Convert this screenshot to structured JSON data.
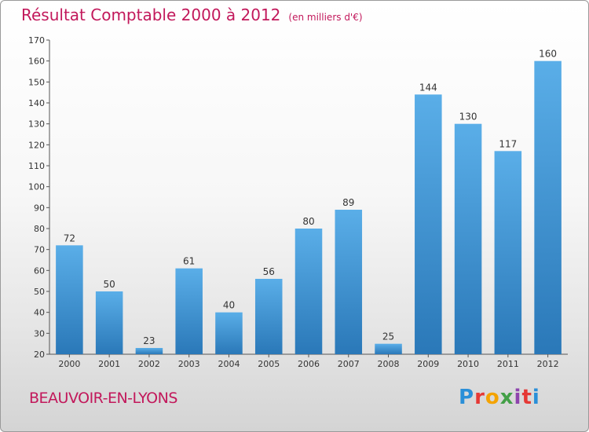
{
  "page": {
    "title": "Résultat Comptable 2000 à 2012",
    "unit": "(en milliers d'€)",
    "commune": "BEAUVOIR-EN-LYONS",
    "logo": [
      "P",
      "r",
      "o",
      "x",
      "i",
      "t",
      "i"
    ],
    "logo_colors": [
      "#2a8fd8",
      "#e53935",
      "#f4a300",
      "#43a047",
      "#8e44ad",
      "#e53935",
      "#2a8fd8"
    ]
  },
  "chart_data": {
    "type": "bar",
    "title": "Résultat Comptable 2000 à 2012",
    "ylabel": "en milliers d'€",
    "categories": [
      "2000",
      "2001",
      "2002",
      "2003",
      "2004",
      "2005",
      "2006",
      "2007",
      "2008",
      "2009",
      "2010",
      "2011",
      "2012"
    ],
    "values": [
      72,
      50,
      23,
      61,
      40,
      56,
      80,
      89,
      25,
      144,
      130,
      117,
      160
    ],
    "ylim": [
      20,
      170
    ],
    "yticks": [
      20,
      30,
      40,
      50,
      60,
      70,
      80,
      90,
      100,
      110,
      120,
      130,
      140,
      150,
      160,
      170
    ],
    "grid": false,
    "bar_color_top": "#5aaee8",
    "bar_color_bottom": "#2a78b8",
    "label_color": "#333333"
  }
}
